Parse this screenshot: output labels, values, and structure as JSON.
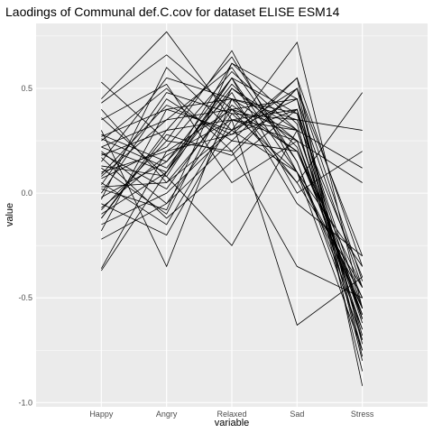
{
  "chart_data": {
    "type": "line",
    "title": "Laodings of Communal def.C.cov for dataset ELISE ESM14",
    "xlabel": "variable",
    "ylabel": "value",
    "categories": [
      "Happy",
      "Angry",
      "Relaxed",
      "Sad",
      "Stress"
    ],
    "ylim": [
      -1.02,
      0.81
    ],
    "yticks": [
      -1.0,
      -0.5,
      0.0,
      0.5
    ],
    "ytick_labels": [
      "-1.0",
      "-0.5",
      "0.0",
      "0.5"
    ],
    "grid": true,
    "legend": "none",
    "colors": {
      "panel": "#ebebeb",
      "grid": "#ffffff",
      "line": "#000000"
    },
    "series": [
      {
        "values": [
          0.53,
          0.25,
          0.68,
          0.1,
          -0.55
        ]
      },
      {
        "values": [
          0.45,
          0.77,
          0.35,
          0.3,
          -0.6
        ]
      },
      {
        "values": [
          0.43,
          0.66,
          0.4,
          0.2,
          -0.5
        ]
      },
      {
        "values": [
          0.36,
          0.08,
          0.55,
          0.38,
          -0.7
        ]
      },
      {
        "values": [
          0.3,
          -0.35,
          0.45,
          0.25,
          -0.65
        ]
      },
      {
        "values": [
          0.27,
          0.4,
          0.3,
          0.72,
          -0.55
        ]
      },
      {
        "values": [
          0.25,
          0.5,
          0.2,
          0.5,
          -0.3
        ]
      },
      {
        "values": [
          0.22,
          0.1,
          0.62,
          0.33,
          -0.75
        ]
      },
      {
        "values": [
          0.2,
          -0.05,
          0.4,
          0.45,
          -0.45
        ]
      },
      {
        "values": [
          0.18,
          0.3,
          0.35,
          -0.63,
          -0.4
        ]
      },
      {
        "values": [
          0.15,
          0.55,
          0.45,
          0.05,
          0.48
        ]
      },
      {
        "values": [
          0.12,
          -0.1,
          0.5,
          0.3,
          -0.6
        ]
      },
      {
        "values": [
          0.1,
          0.2,
          0.28,
          0.4,
          -0.85
        ]
      },
      {
        "values": [
          0.08,
          0.35,
          0.6,
          0.15,
          -0.7
        ]
      },
      {
        "values": [
          0.05,
          -0.15,
          0.38,
          0.35,
          0.3
        ]
      },
      {
        "values": [
          0.03,
          0.05,
          0.42,
          0.2,
          -0.55
        ]
      },
      {
        "values": [
          0.0,
          0.45,
          0.25,
          0.55,
          -0.92
        ]
      },
      {
        "values": [
          -0.02,
          0.15,
          0.55,
          0.1,
          -0.35
        ]
      },
      {
        "values": [
          -0.05,
          -0.2,
          0.35,
          0.4,
          -0.6
        ]
      },
      {
        "values": [
          -0.08,
          0.25,
          0.2,
          -0.35,
          -0.5
        ]
      },
      {
        "values": [
          -0.1,
          0.1,
          0.5,
          0.25,
          0.05
        ]
      },
      {
        "values": [
          -0.12,
          0.3,
          0.65,
          0.15,
          -0.65
        ]
      },
      {
        "values": [
          -0.15,
          0.0,
          0.3,
          0.5,
          -0.78
        ]
      },
      {
        "values": [
          -0.18,
          0.4,
          0.45,
          0.35,
          -0.4
        ]
      },
      {
        "values": [
          -0.22,
          -0.05,
          0.25,
          0.2,
          -0.45
        ]
      },
      {
        "values": [
          -0.36,
          0.2,
          0.4,
          0.3,
          -0.6
        ]
      },
      {
        "values": [
          -0.37,
          0.1,
          0.55,
          0.0,
          0.2
        ]
      },
      {
        "values": [
          0.4,
          0.05,
          0.3,
          0.45,
          -0.72
        ]
      },
      {
        "values": [
          0.35,
          0.52,
          0.05,
          0.25,
          -0.58
        ]
      },
      {
        "values": [
          0.28,
          0.15,
          0.48,
          -0.05,
          -0.3
        ]
      },
      {
        "values": [
          0.17,
          -0.12,
          0.15,
          0.4,
          -0.55
        ]
      },
      {
        "values": [
          0.07,
          0.22,
          0.58,
          0.3,
          0.12
        ]
      },
      {
        "values": [
          -0.03,
          0.6,
          0.3,
          0.1,
          -0.5
        ]
      },
      {
        "values": [
          0.13,
          0.08,
          -0.25,
          0.3,
          -0.62
        ]
      },
      {
        "values": [
          0.22,
          0.35,
          0.4,
          0.05,
          -0.45
        ]
      },
      {
        "values": [
          0.02,
          -0.08,
          0.62,
          0.45,
          -0.8
        ]
      },
      {
        "values": [
          -0.07,
          0.18,
          0.35,
          0.25,
          -0.58
        ]
      },
      {
        "values": [
          0.09,
          0.42,
          0.28,
          0.55,
          -0.35
        ]
      },
      {
        "values": [
          0.19,
          0.02,
          0.45,
          0.38,
          -0.68
        ]
      },
      {
        "values": [
          -0.12,
          0.28,
          0.18,
          0.5,
          -0.42
        ]
      },
      {
        "values": [
          0.26,
          0.12,
          0.52,
          0.22,
          -0.6
        ]
      },
      {
        "values": [
          0.04,
          0.48,
          0.38,
          0.1,
          -0.75
        ]
      }
    ]
  }
}
